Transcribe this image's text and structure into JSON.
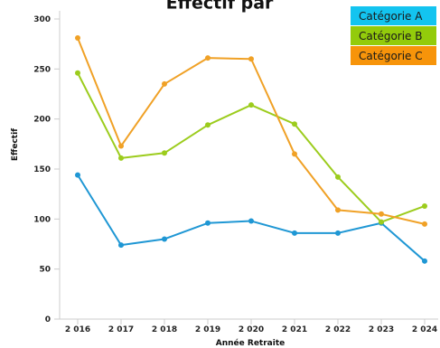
{
  "chart_data": {
    "type": "line",
    "title": "Effectif par",
    "xlabel": "Année Retraite",
    "ylabel": "Effectif",
    "categories": [
      "2 016",
      "2 017",
      "2 018",
      "2 019",
      "2 020",
      "2 021",
      "2 022",
      "2 023",
      "2 024"
    ],
    "yticks": [
      "0",
      "50",
      "100",
      "150",
      "200",
      "250",
      "300"
    ],
    "ylim": [
      0,
      300
    ],
    "grid": false,
    "legend_position": "top-right",
    "series": [
      {
        "name": "Catégorie A",
        "color": "#1f97d4",
        "legend_color": "#13c4f0",
        "values": [
          144,
          74,
          80,
          96,
          98,
          86,
          86,
          96,
          58
        ]
      },
      {
        "name": "Catégorie B",
        "color": "#9ccc1d",
        "legend_color": "#93cb0b",
        "values": [
          246,
          161,
          166,
          194,
          214,
          195,
          142,
          97,
          113
        ]
      },
      {
        "name": "Catégorie C",
        "color": "#f0a126",
        "legend_color": "#f7940a",
        "values": [
          281,
          173,
          235,
          261,
          260,
          165,
          109,
          105,
          95
        ]
      }
    ]
  }
}
